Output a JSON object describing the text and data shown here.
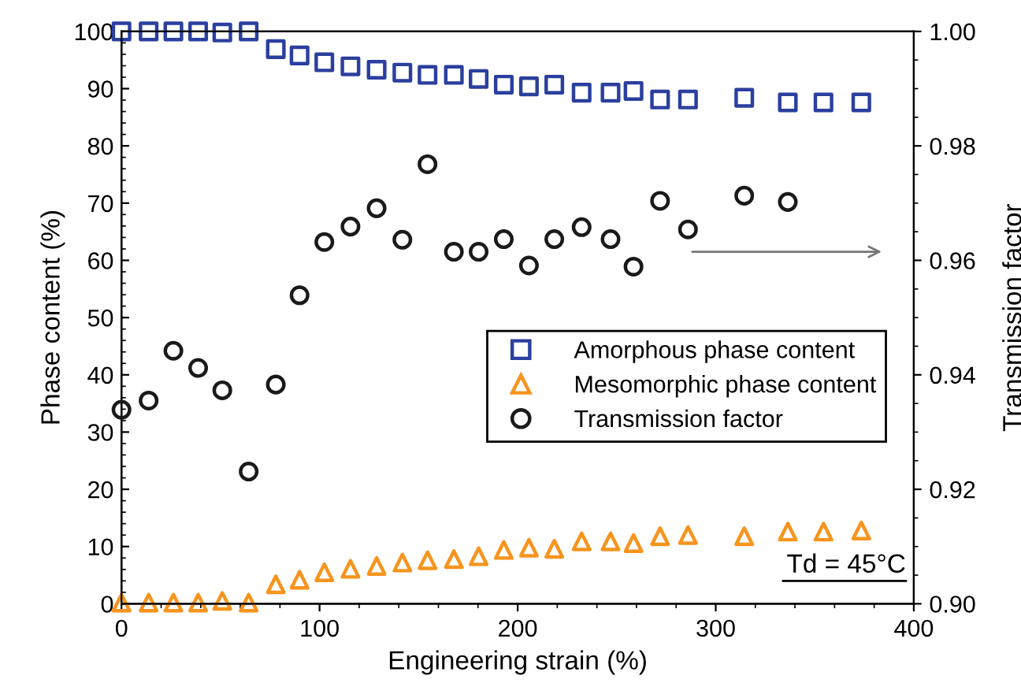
{
  "chart_data": {
    "type": "scatter",
    "xlabel": "Engineering strain (%)",
    "ylabel": "Phase content (%)",
    "y2label": "Transmission factor",
    "x": [
      0,
      13.7,
      26.2,
      38.7,
      50.9,
      64.2,
      77.9,
      89.9,
      102.4,
      115.6,
      128.8,
      141.8,
      154.5,
      167.8,
      180.3,
      193,
      205.7,
      218.5,
      232.3,
      246.9,
      258.5,
      271.9,
      286,
      314.4,
      336.4,
      354.4,
      373.5
    ],
    "series": [
      {
        "name": "Amorphous phase content",
        "color": "#2b3f9e",
        "marker": "square",
        "values": [
          100,
          100,
          100,
          100,
          99.8,
          100,
          96.9,
          95.8,
          94.6,
          93.9,
          93.3,
          92.8,
          92.4,
          92.4,
          91.7,
          90.7,
          90.4,
          90.7,
          89.3,
          89.3,
          89.6,
          88.1,
          88.1,
          88.4,
          87.6,
          87.6,
          87.6
        ]
      },
      {
        "name": "Mesomorphic phase content",
        "color": "#f7941d",
        "marker": "triangle",
        "values": [
          0.2,
          0.2,
          0.2,
          0.2,
          0.5,
          0.2,
          3.4,
          4.2,
          5.5,
          6.1,
          6.6,
          7.2,
          7.6,
          7.8,
          8.3,
          9.4,
          9.8,
          9.6,
          10.9,
          10.9,
          10.6,
          11.8,
          12.0,
          11.8,
          12.6,
          12.6,
          12.8
        ]
      },
      {
        "name": "Transmission factor",
        "color": "#1a1a1a",
        "marker": "circle",
        "axis": "y2",
        "values": [
          0.9339,
          0.9355,
          0.9442,
          0.9412,
          0.9373,
          0.9231,
          0.9383,
          0.9539,
          0.9632,
          0.9659,
          0.9691,
          0.9636,
          0.9768,
          0.9615,
          0.9615,
          0.9637,
          0.9591,
          0.9637,
          0.9658,
          0.9637,
          0.9589,
          0.9704,
          0.9654,
          0.9713,
          0.9702,
          null,
          null
        ]
      }
    ],
    "xlim": [
      0,
      400
    ],
    "xticks": [
      0,
      100,
      200,
      300,
      400
    ],
    "ylim": [
      0,
      100
    ],
    "yticks": [
      0,
      10,
      20,
      30,
      40,
      50,
      60,
      70,
      80,
      90,
      100
    ],
    "y2lim": [
      0.9,
      1.0
    ],
    "y2ticks": [
      {
        "value": 0.9,
        "label": "0.90"
      },
      {
        "value": 0.92,
        "label": "0.92"
      },
      {
        "value": 0.94,
        "label": "0.94"
      },
      {
        "value": 0.96,
        "label": "0.96"
      },
      {
        "value": 0.98,
        "label": "0.98"
      },
      {
        "value": 1.0,
        "label": "1.00"
      }
    ],
    "annotations": [
      "Td = 45°C"
    ],
    "legend": "right",
    "grid": false
  }
}
